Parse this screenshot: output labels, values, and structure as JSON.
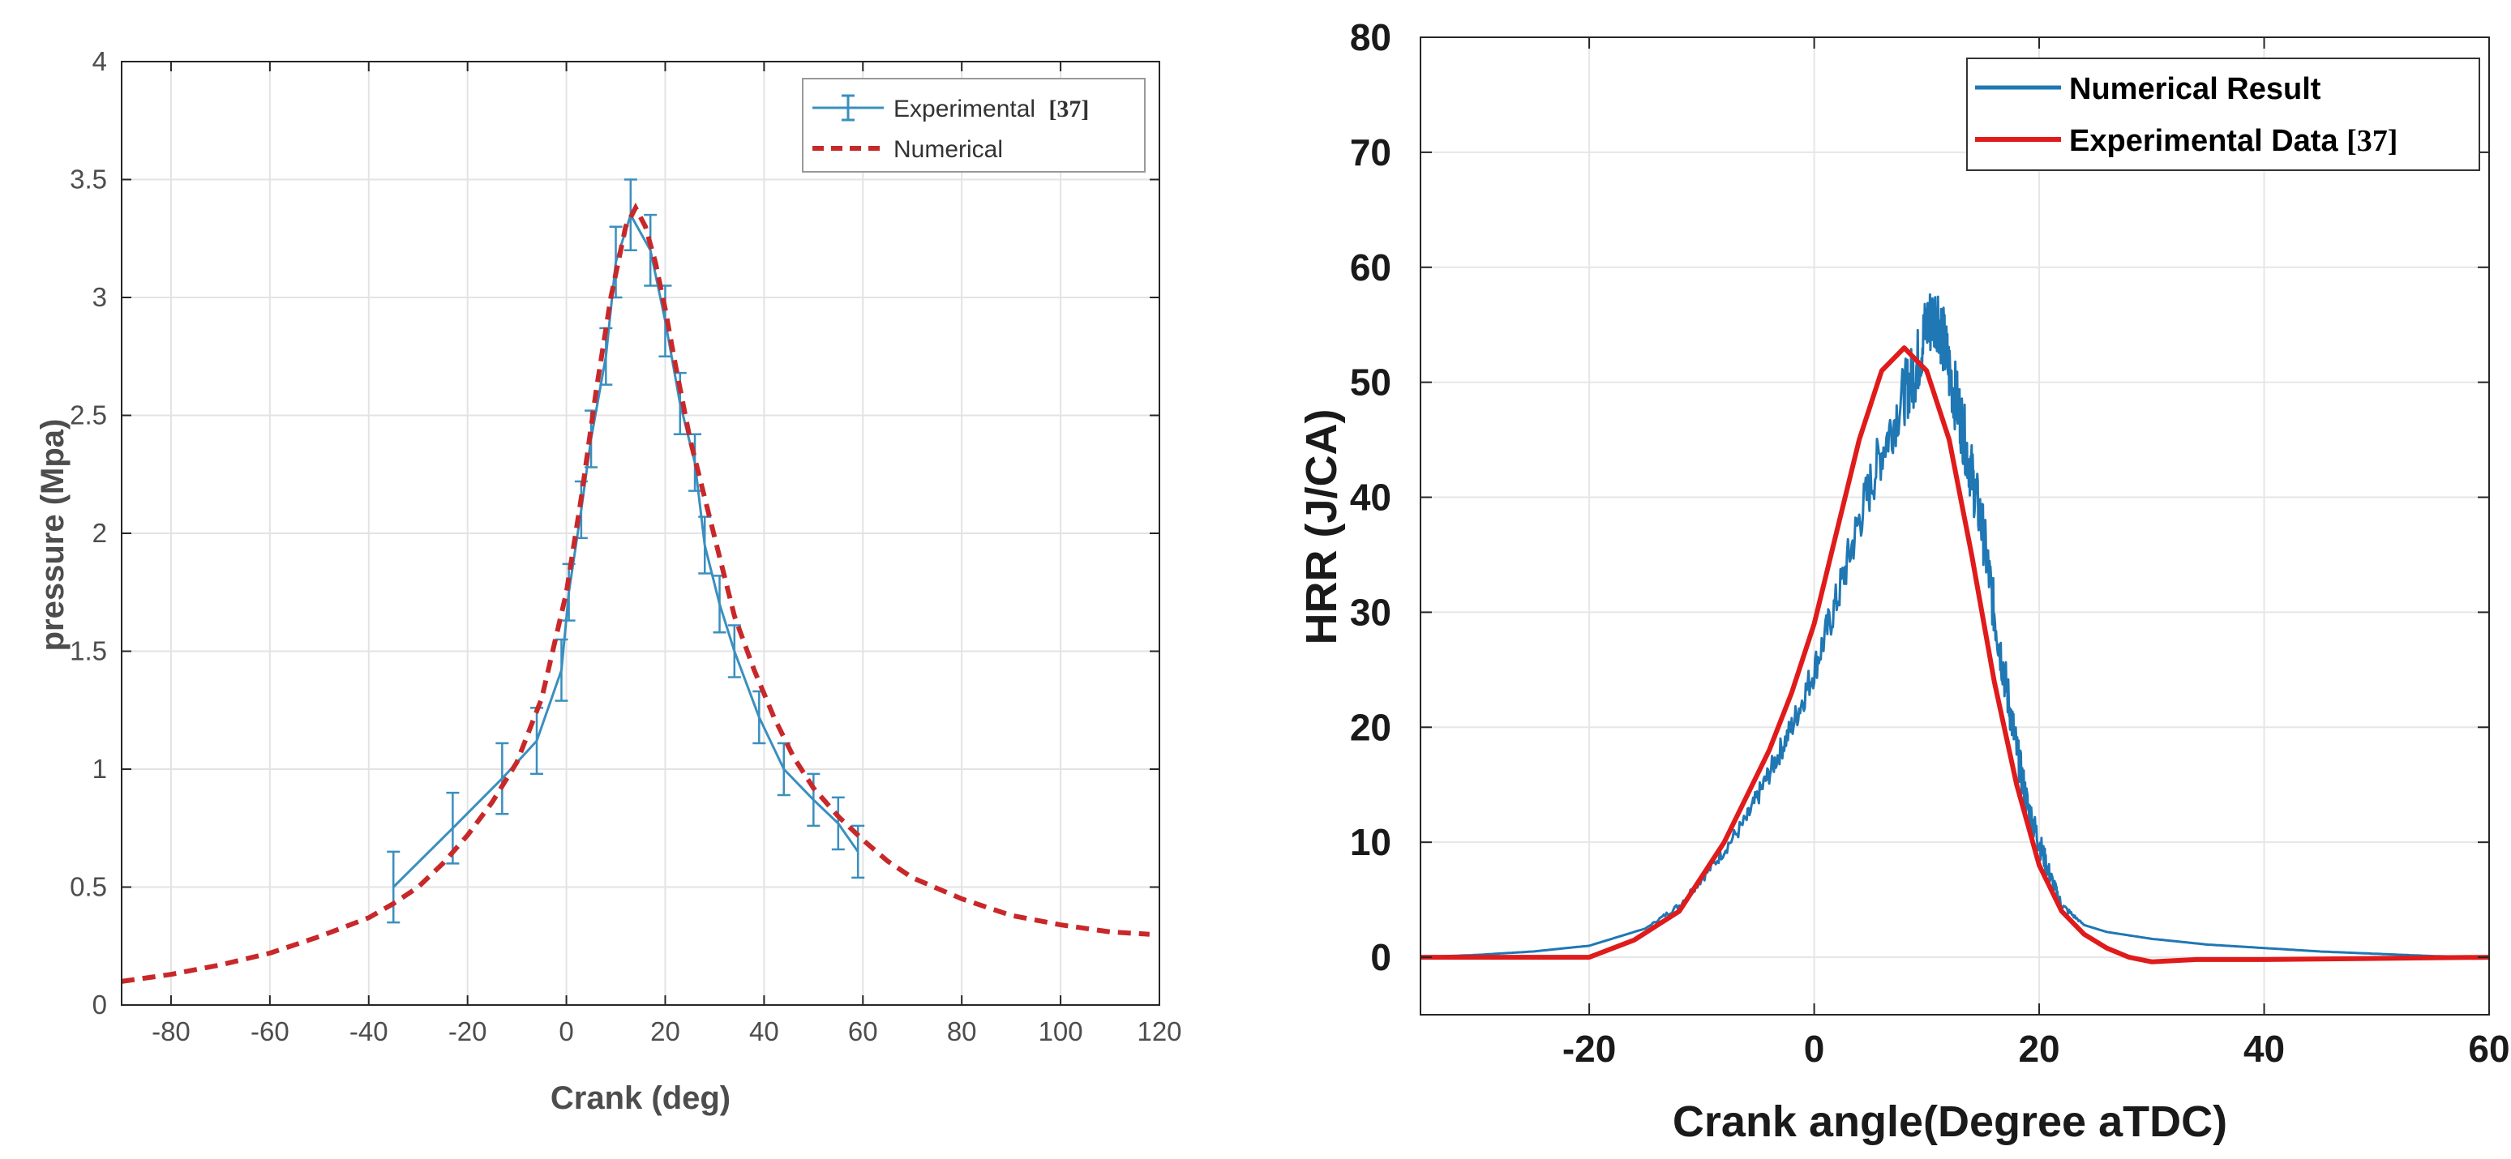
{
  "chart_data": [
    {
      "type": "line",
      "xlabel": "Crank (deg)",
      "ylabel": "pressure (Mpa)",
      "xlim": [
        -90,
        120
      ],
      "ylim": [
        0,
        4
      ],
      "xticks": [
        -80,
        -60,
        -40,
        -20,
        0,
        20,
        40,
        60,
        80,
        100,
        120
      ],
      "yticks": [
        0,
        0.5,
        1,
        1.5,
        2,
        2.5,
        3,
        3.5,
        4
      ],
      "xtick_labels": [
        "-80",
        "-60",
        "-40",
        "-20",
        "0",
        "20",
        "40",
        "60",
        "80",
        "100",
        "120"
      ],
      "ytick_labels": [
        "0",
        "0.5",
        "1",
        "1.5",
        "2",
        "2.5",
        "3",
        "3.5",
        "4"
      ],
      "grid": true,
      "legend_position": "top-right",
      "series": [
        {
          "name": "Experimental",
          "ref": "[37]",
          "color": "#3a8fbf",
          "style": "solid-errorbar",
          "x": [
            -35,
            -23,
            -13,
            -6,
            -1,
            0.5,
            3,
            5,
            8,
            10,
            13,
            17,
            20,
            23,
            26,
            28,
            31,
            34,
            39,
            44,
            50,
            55,
            59
          ],
          "y": [
            0.5,
            0.75,
            0.96,
            1.12,
            1.42,
            1.75,
            2.1,
            2.4,
            2.75,
            3.15,
            3.35,
            3.2,
            2.9,
            2.55,
            2.3,
            1.95,
            1.7,
            1.5,
            1.22,
            1.0,
            0.87,
            0.77,
            0.65
          ],
          "err": [
            0.15,
            0.15,
            0.15,
            0.14,
            0.13,
            0.12,
            0.12,
            0.12,
            0.12,
            0.15,
            0.15,
            0.15,
            0.15,
            0.13,
            0.12,
            0.12,
            0.12,
            0.11,
            0.11,
            0.11,
            0.11,
            0.11,
            0.11
          ]
        },
        {
          "name": "Numerical",
          "color": "#c8282a",
          "style": "dashed",
          "x": [
            -90,
            -80,
            -70,
            -60,
            -50,
            -40,
            -35,
            -30,
            -25,
            -20,
            -15,
            -10,
            -5,
            0,
            3,
            6,
            9,
            12,
            14,
            16,
            18,
            20,
            22,
            25,
            28,
            31,
            34,
            38,
            42,
            46,
            50,
            55,
            60,
            65,
            70,
            80,
            90,
            100,
            110,
            118
          ],
          "y": [
            0.1,
            0.13,
            0.17,
            0.22,
            0.29,
            0.37,
            0.43,
            0.5,
            0.6,
            0.72,
            0.86,
            1.03,
            1.3,
            1.75,
            2.15,
            2.6,
            3.0,
            3.3,
            3.38,
            3.3,
            3.15,
            2.95,
            2.72,
            2.4,
            2.15,
            1.9,
            1.65,
            1.42,
            1.22,
            1.05,
            0.92,
            0.8,
            0.7,
            0.61,
            0.54,
            0.45,
            0.38,
            0.34,
            0.31,
            0.3
          ]
        }
      ]
    },
    {
      "type": "line",
      "xlabel": "Crank angle(Degree aTDC)",
      "ylabel": "HRR (J/CA)",
      "xlim": [
        -35,
        60
      ],
      "ylim": [
        -5,
        80
      ],
      "xticks": [
        -20,
        0,
        20,
        40,
        60
      ],
      "yticks": [
        0,
        10,
        20,
        30,
        40,
        50,
        60,
        70,
        80
      ],
      "xtick_labels": [
        "-20",
        "0",
        "20",
        "40",
        "60"
      ],
      "ytick_labels": [
        "0",
        "10",
        "20",
        "30",
        "40",
        "50",
        "60",
        "70",
        "80"
      ],
      "grid": true,
      "legend_position": "top-right",
      "series": [
        {
          "name": "Numerical Result",
          "color": "#1f77b4",
          "style": "solid-noisy",
          "x": [
            -35,
            -30,
            -25,
            -20,
            -15,
            -12,
            -9,
            -6,
            -4,
            -2,
            0,
            2,
            4,
            6,
            8,
            9,
            10,
            11,
            12,
            13,
            14,
            15,
            16,
            17,
            18,
            19,
            20,
            21,
            22,
            24,
            26,
            30,
            35,
            40,
            45,
            50,
            55,
            60
          ],
          "y": [
            0,
            0.2,
            0.5,
            1,
            2.5,
            4.5,
            8,
            12,
            16,
            20,
            25,
            31,
            38,
            44,
            49,
            51,
            55,
            56,
            51,
            47,
            42,
            37,
            30,
            24,
            18,
            13,
            10,
            7,
            4.5,
            2.8,
            2.2,
            1.6,
            1.1,
            0.8,
            0.5,
            0.3,
            0.1,
            0
          ],
          "noise": [
            0,
            0,
            0,
            0,
            0,
            0.3,
            0.5,
            0.8,
            1,
            1.2,
            1.5,
            1.8,
            2.2,
            2.5,
            2.8,
            3,
            3.2,
            3.2,
            3.2,
            3,
            2.8,
            2.6,
            2.4,
            2.1,
            1.8,
            1.5,
            1.2,
            0.8,
            0.4,
            0,
            0,
            0,
            0,
            0,
            0,
            0,
            0,
            0
          ]
        },
        {
          "name": "Experimental Data",
          "ref": "[37]",
          "color": "#e01b1b",
          "style": "solid",
          "x": [
            -35,
            -28,
            -20,
            -16,
            -12,
            -8,
            -4,
            -2,
            0,
            2,
            4,
            6,
            8,
            10,
            12,
            14,
            16,
            18,
            20,
            22,
            24,
            26,
            28,
            30,
            34,
            40,
            50,
            60
          ],
          "y": [
            0,
            0,
            0,
            1.5,
            4,
            10,
            18,
            23,
            29,
            37,
            45,
            51,
            53,
            51,
            45,
            35,
            24,
            15,
            8,
            4,
            2,
            0.8,
            0,
            -0.4,
            -0.2,
            -0.2,
            -0.1,
            0
          ]
        }
      ]
    }
  ]
}
